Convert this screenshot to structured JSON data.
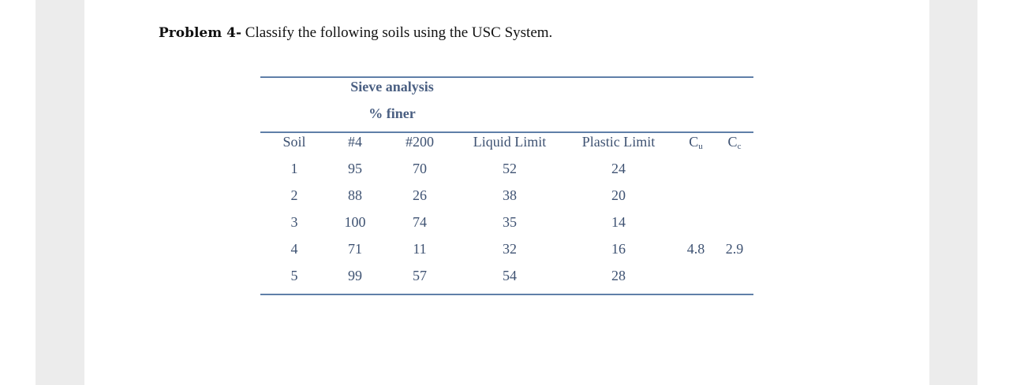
{
  "problem": {
    "label": "Problem 4-",
    "text": " Classify the following soils using the USC System."
  },
  "table": {
    "group_header": [
      "Sieve analysis",
      "% finer"
    ],
    "columns": [
      {
        "key": "soil",
        "label": "Soil"
      },
      {
        "key": "no4",
        "label": "#4"
      },
      {
        "key": "no200",
        "label": "#200"
      },
      {
        "key": "ll",
        "label": "Liquid Limit"
      },
      {
        "key": "pl",
        "label": "Plastic Limit"
      },
      {
        "key": "cu",
        "label": "C",
        "sub": "u"
      },
      {
        "key": "cc",
        "label": "C",
        "sub": "c"
      }
    ],
    "rows": [
      {
        "soil": 1,
        "no4": 95,
        "no200": 70,
        "ll": 52,
        "pl": 24
      },
      {
        "soil": 2,
        "no4": 88,
        "no200": 26,
        "ll": 38,
        "pl": 20
      },
      {
        "soil": 3,
        "no4": 100,
        "no200": 74,
        "ll": 35,
        "pl": 14
      },
      {
        "soil": 4,
        "no4": 71,
        "no200": 11,
        "ll": 32,
        "pl": 16,
        "cu": 4.8,
        "cc": 2.9
      },
      {
        "soil": 5,
        "no4": 99,
        "no200": 57,
        "ll": 54,
        "pl": 28
      }
    ]
  }
}
